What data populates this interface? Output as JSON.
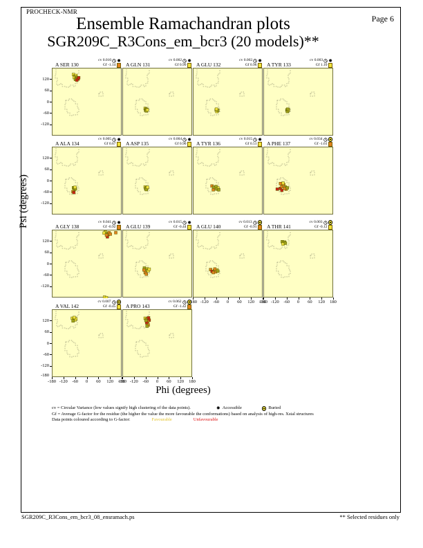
{
  "page": {
    "app": "PROCHECK-NMR",
    "page_label": "Page  6",
    "title": "Ensemble Ramachandran plots",
    "subtitle": "SGR209C_R3Cons_em_bcr3 (20 models)**",
    "footer_left": "SGR209C_R3Cons_em_bcr3_08_ensramach.ps",
    "footer_right": "** Selected residues only"
  },
  "axes": {
    "x_label": "Phi (degrees)",
    "y_label": "Psi (degrees)",
    "x_ticks": [
      "-180",
      "-120",
      "-60",
      "0",
      "60",
      "120",
      "180"
    ],
    "y_ticks": [
      "120",
      "60",
      "0",
      "-60",
      "-120"
    ],
    "y_bottom_tick": "-180"
  },
  "legend": {
    "line1": "cv = Circular Variance (low values signify high clustering of the data points).",
    "accessible_label": "Accessible",
    "buried_label": "Buried",
    "line2": "Gf = Average G-factor for the residue (the higher the value the more favourable the conformations)  based on analysis of high-res. Xstal structures",
    "line3_prefix": "Data points coloured according to G-factor:",
    "favourable_label": "Favourable",
    "unfavourable_label": "Unfavourable"
  },
  "colors": {
    "plot_bg": "#ffffc4",
    "yellow_point": "#f0e33c",
    "olive_point": "#9fa31c",
    "orange_point": "#e0821e",
    "red_point": "#cc2015",
    "gf_yellow": "#f0e33c",
    "gf_orange": "#e0821e",
    "favourable_text": "#e3c229",
    "unfavourable_text": "#dd1111",
    "contour": "#9a9a78"
  },
  "chart_data": {
    "type": "scatter",
    "x_range": [
      -180,
      180
    ],
    "y_range": [
      -180,
      180
    ],
    "x_ticks": [
      -180,
      -120,
      -60,
      0,
      60,
      120,
      180
    ],
    "y_ticks": [
      120,
      60,
      0,
      -60,
      -120
    ],
    "point_color_key": {
      "y": "favourable-yellow",
      "v": "olive",
      "o": "orange",
      "r": "unfavourable-red"
    },
    "plots": [
      {
        "residue": "A SER 130",
        "row": 0,
        "col": 0,
        "cv": "cv 0.010",
        "gf": "Gf -1.14",
        "gf_square": "orange",
        "accessibility": "accessible",
        "points": [
          [
            -72,
            148,
            "y"
          ],
          [
            -65,
            140,
            "v"
          ],
          [
            -60,
            143,
            "y"
          ],
          [
            -68,
            132,
            "y"
          ],
          [
            -58,
            135,
            "v"
          ],
          [
            -62,
            122,
            "v"
          ],
          [
            -52,
            128,
            "o"
          ],
          [
            -48,
            124,
            "r"
          ],
          [
            -55,
            118,
            "r"
          ],
          [
            -45,
            131,
            "r"
          ]
        ]
      },
      {
        "residue": "A GLN 131",
        "row": 0,
        "col": 1,
        "cv": "cv 0.002",
        "gf": "Gf 0.99",
        "gf_square": "yellow",
        "accessibility": "accessible",
        "points": [
          [
            -66,
            -32,
            "y"
          ],
          [
            -61,
            -35,
            "v"
          ],
          [
            -64,
            -41,
            "v"
          ],
          [
            -58,
            -38,
            "y"
          ],
          [
            -60,
            -45,
            "v"
          ],
          [
            -55,
            -40,
            "y"
          ]
        ]
      },
      {
        "residue": "A GLU 132",
        "row": 0,
        "col": 2,
        "cv": "cv 0.002",
        "gf": "Gf 0.96",
        "gf_square": "yellow",
        "accessibility": "accessible",
        "points": [
          [
            -63,
            -40,
            "v"
          ],
          [
            -58,
            -44,
            "v"
          ],
          [
            -60,
            -48,
            "y"
          ],
          [
            -55,
            -42,
            "v"
          ],
          [
            -62,
            -36,
            "y"
          ]
        ]
      },
      {
        "residue": "A TYR 133",
        "row": 0,
        "col": 3,
        "cv": "cv 0.003",
        "gf": "Gf 1.10",
        "gf_square": "yellow",
        "accessibility": "accessible",
        "points": [
          [
            -62,
            -40,
            "v"
          ],
          [
            -57,
            -44,
            "v"
          ],
          [
            -60,
            -48,
            "v"
          ],
          [
            -54,
            -40,
            "y"
          ],
          [
            -58,
            -36,
            "v"
          ]
        ]
      },
      {
        "residue": "A ALA 134",
        "row": 1,
        "col": 0,
        "cv": "cv 0.005",
        "gf": "Gf 0.67",
        "gf_square": "yellow",
        "accessibility": "accessible",
        "points": [
          [
            -72,
            -34,
            "v"
          ],
          [
            -66,
            -38,
            "y"
          ],
          [
            -68,
            -44,
            "v"
          ],
          [
            -62,
            -40,
            "v"
          ],
          [
            -75,
            -55,
            "o"
          ],
          [
            -70,
            -60,
            "r"
          ],
          [
            -64,
            -32,
            "y"
          ]
        ]
      },
      {
        "residue": "A ASP 135",
        "row": 1,
        "col": 1,
        "cv": "cv 0.004",
        "gf": "Gf 0.90",
        "gf_square": "yellow",
        "accessibility": "accessible",
        "points": [
          [
            -66,
            -30,
            "y"
          ],
          [
            -60,
            -34,
            "v"
          ],
          [
            -63,
            -40,
            "v"
          ],
          [
            -57,
            -37,
            "y"
          ],
          [
            -60,
            -44,
            "v"
          ],
          [
            -54,
            -32,
            "y"
          ]
        ]
      },
      {
        "residue": "A TYR 136",
        "row": 1,
        "col": 2,
        "cv": "cv 0.015",
        "gf": "Gf 0.51",
        "gf_square": "yellow",
        "accessibility": "accessible",
        "points": [
          [
            -85,
            -25,
            "o"
          ],
          [
            -76,
            -32,
            "v"
          ],
          [
            -68,
            -36,
            "y"
          ],
          [
            -60,
            -42,
            "v"
          ],
          [
            -78,
            -45,
            "o"
          ],
          [
            -55,
            -35,
            "y"
          ],
          [
            -64,
            -28,
            "v"
          ],
          [
            -50,
            -45,
            "v"
          ]
        ]
      },
      {
        "residue": "A PHE 137",
        "row": 1,
        "col": 3,
        "cv": "cv 0.034",
        "gf": "Gf -1.61",
        "gf_square": "orange",
        "accessibility": "buried",
        "points": [
          [
            -112,
            -42,
            "r"
          ],
          [
            -96,
            -38,
            "r"
          ],
          [
            -88,
            -28,
            "o"
          ],
          [
            -78,
            -18,
            "o"
          ],
          [
            -70,
            -30,
            "v"
          ],
          [
            -82,
            -10,
            "y"
          ],
          [
            -66,
            -42,
            "o"
          ],
          [
            -88,
            -48,
            "r"
          ],
          [
            -74,
            -38,
            "o"
          ],
          [
            -95,
            -12,
            "o"
          ],
          [
            -60,
            -35,
            "v"
          ]
        ]
      },
      {
        "residue": "A GLY 138",
        "row": 2,
        "col": 0,
        "cv": "cv 0.041",
        "gf": "Gf -0.92",
        "gf_square": "orange",
        "accessibility": "accessible",
        "points": [
          [
            92,
            172,
            "y"
          ],
          [
            100,
            165,
            "v"
          ],
          [
            107,
            158,
            "o"
          ],
          [
            103,
            146,
            "r"
          ],
          [
            112,
            168,
            "o"
          ],
          [
            86,
            166,
            "y"
          ],
          [
            118,
            160,
            "o"
          ],
          [
            98,
            155,
            "o"
          ],
          [
            146,
            168,
            "o"
          ],
          [
            88,
            -174,
            "y"
          ],
          [
            98,
            -177,
            "y"
          ]
        ]
      },
      {
        "residue": "A GLU 139",
        "row": 2,
        "col": 1,
        "cv": "cv 0.015",
        "gf": "Gf -0.44",
        "gf_square": "yellow",
        "accessibility": "accessible",
        "points": [
          [
            -70,
            -20,
            "v"
          ],
          [
            -56,
            -24,
            "y"
          ],
          [
            -63,
            -33,
            "o"
          ],
          [
            -58,
            -30,
            "v"
          ],
          [
            -66,
            -44,
            "o"
          ],
          [
            -50,
            -34,
            "y"
          ],
          [
            -60,
            -52,
            "o"
          ],
          [
            -45,
            -26,
            "y"
          ],
          [
            -72,
            -30,
            "o"
          ]
        ]
      },
      {
        "residue": "A GLU 140",
        "row": 2,
        "col": 2,
        "cv": "cv 0.013",
        "gf": "Gf -0.91",
        "gf_square": "orange",
        "accessibility": "buried",
        "points": [
          [
            -92,
            -28,
            "o"
          ],
          [
            -85,
            -38,
            "r"
          ],
          [
            -72,
            -33,
            "v"
          ],
          [
            -66,
            -40,
            "o"
          ],
          [
            -60,
            -30,
            "y"
          ],
          [
            -78,
            -44,
            "o"
          ],
          [
            -55,
            -36,
            "v"
          ],
          [
            -70,
            -25,
            "o"
          ]
        ]
      },
      {
        "residue": "A THR 141",
        "row": 2,
        "col": 3,
        "cv": "cv 0.003",
        "gf": "Gf -0.12",
        "gf_square": "yellow",
        "accessibility": "buried",
        "points": [
          [
            -86,
            120,
            "v"
          ],
          [
            -79,
            113,
            "y"
          ],
          [
            -74,
            118,
            "v"
          ],
          [
            -82,
            108,
            "y"
          ],
          [
            -70,
            112,
            "v"
          ]
        ]
      },
      {
        "residue": "A VAL 142",
        "row": 3,
        "col": 0,
        "cv": "cv 0.007",
        "gf": "Gf -0.45",
        "gf_square": "yellow",
        "accessibility": "buried",
        "points": [
          [
            -78,
            136,
            "y"
          ],
          [
            -70,
            132,
            "v"
          ],
          [
            -64,
            127,
            "y"
          ],
          [
            -74,
            122,
            "v"
          ],
          [
            -60,
            133,
            "y"
          ],
          [
            -68,
            140,
            "y"
          ]
        ]
      },
      {
        "residue": "A PRO 143",
        "row": 3,
        "col": 1,
        "cv": "cv 0.062",
        "gf": "Gf -1.42",
        "gf_square": "orange",
        "accessibility": "buried",
        "points": [
          [
            -66,
            136,
            "y"
          ],
          [
            -60,
            130,
            "v"
          ],
          [
            -54,
            133,
            "o"
          ],
          [
            -48,
            138,
            "r"
          ],
          [
            -45,
            126,
            "r"
          ],
          [
            -52,
            118,
            "o"
          ],
          [
            -58,
            112,
            "r"
          ],
          [
            -62,
            124,
            "v"
          ],
          [
            -50,
            100,
            "o"
          ],
          [
            -56,
            94,
            "v"
          ]
        ]
      }
    ]
  }
}
